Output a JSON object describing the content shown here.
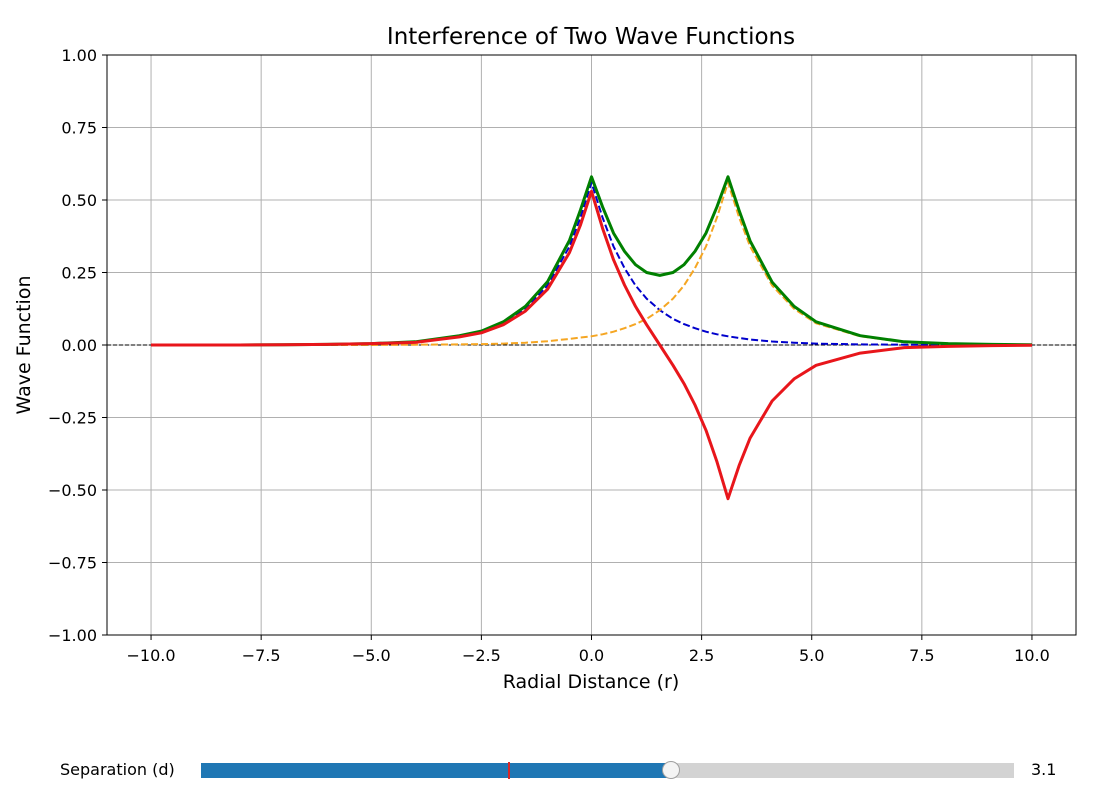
{
  "chart_data": {
    "type": "line",
    "title": "Interference of Two Wave Functions",
    "xlabel": "Radial Distance (r)",
    "ylabel": "Wave Function",
    "xlim": [
      -11,
      11
    ],
    "ylim": [
      -1.0,
      1.0
    ],
    "xticks": [
      -10.0,
      -7.5,
      -5.0,
      -2.5,
      0.0,
      2.5,
      5.0,
      7.5,
      10.0
    ],
    "xtick_labels": [
      "−10.0",
      "−7.5",
      "−5.0",
      "−2.5",
      "0.0",
      "2.5",
      "5.0",
      "7.5",
      "10.0"
    ],
    "yticks": [
      -1.0,
      -0.75,
      -0.5,
      -0.25,
      0.0,
      0.25,
      0.5,
      0.75,
      1.0
    ],
    "ytick_labels": [
      "−1.00",
      "−0.75",
      "−0.50",
      "−0.25",
      "0.00",
      "0.25",
      "0.50",
      "0.75",
      "1.00"
    ],
    "grid": true,
    "legend": "none",
    "reference_line": {
      "y": 0,
      "style": "dashed",
      "color": "#000000"
    },
    "separation": 3.1,
    "x": [
      -10,
      -9,
      -8,
      -7,
      -6,
      -5,
      -4,
      -3,
      -2.5,
      -2,
      -1.5,
      -1,
      -0.5,
      -0.25,
      0,
      0.25,
      0.5,
      0.75,
      1,
      1.25,
      1.55,
      1.85,
      2.1,
      2.35,
      2.6,
      2.85,
      3.1,
      3.35,
      3.6,
      4.1,
      4.6,
      5.1,
      6.1,
      7.1,
      8.1,
      9.1,
      10
    ],
    "series": [
      {
        "color": "#0000cc",
        "style": "dashed",
        "values": [
          0.0,
          0.0,
          0.0,
          0.001,
          0.002,
          0.005,
          0.01,
          0.03,
          0.045,
          0.075,
          0.125,
          0.205,
          0.34,
          0.44,
          0.56,
          0.44,
          0.34,
          0.265,
          0.205,
          0.16,
          0.12,
          0.09,
          0.072,
          0.058,
          0.046,
          0.037,
          0.03,
          0.024,
          0.019,
          0.012,
          0.008,
          0.005,
          0.002,
          0.001,
          0.0,
          0.0,
          0.0
        ]
      },
      {
        "color": "#f5a623",
        "style": "dashed",
        "values": [
          0.0,
          0.0,
          0.0,
          0.0,
          0.0,
          0.0,
          0.001,
          0.002,
          0.003,
          0.005,
          0.008,
          0.013,
          0.021,
          0.026,
          0.03,
          0.037,
          0.046,
          0.058,
          0.072,
          0.09,
          0.12,
          0.16,
          0.205,
          0.265,
          0.34,
          0.44,
          0.56,
          0.44,
          0.34,
          0.205,
          0.125,
          0.075,
          0.03,
          0.01,
          0.005,
          0.002,
          0.001
        ]
      },
      {
        "color": "#008000",
        "style": "solid",
        "values": [
          0.0,
          0.0,
          0.0,
          0.001,
          0.002,
          0.005,
          0.011,
          0.032,
          0.048,
          0.08,
          0.133,
          0.218,
          0.361,
          0.466,
          0.58,
          0.477,
          0.386,
          0.323,
          0.277,
          0.25,
          0.24,
          0.25,
          0.277,
          0.323,
          0.386,
          0.477,
          0.58,
          0.464,
          0.359,
          0.217,
          0.133,
          0.08,
          0.032,
          0.011,
          0.005,
          0.002,
          0.001
        ]
      },
      {
        "color": "#e8161b",
        "style": "solid",
        "values": [
          0.0,
          0.0,
          0.0,
          0.001,
          0.002,
          0.005,
          0.009,
          0.028,
          0.042,
          0.07,
          0.117,
          0.192,
          0.319,
          0.414,
          0.53,
          0.403,
          0.294,
          0.207,
          0.133,
          0.07,
          0.0,
          -0.07,
          -0.133,
          -0.207,
          -0.294,
          -0.403,
          -0.53,
          -0.416,
          -0.321,
          -0.193,
          -0.117,
          -0.07,
          -0.028,
          -0.009,
          -0.005,
          -0.002,
          -0.001
        ]
      }
    ]
  },
  "slider": {
    "label": "Separation (d)",
    "value_text": "3.1",
    "min": 0.5,
    "max": 5,
    "value": 3.1,
    "initial": 2.2,
    "fill_color": "#1f77b4",
    "track_color": "#d3d3d3"
  }
}
